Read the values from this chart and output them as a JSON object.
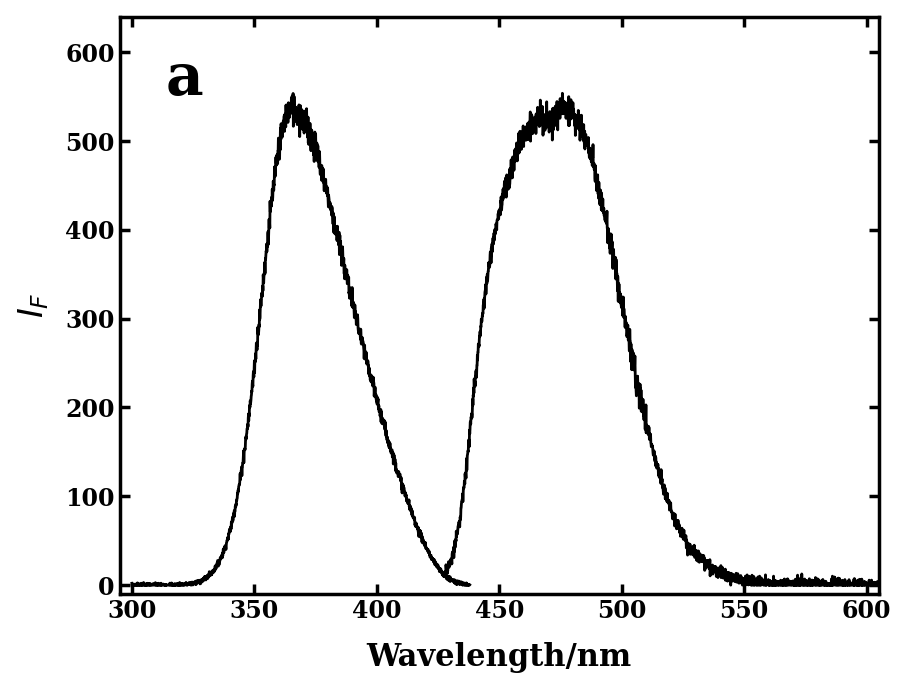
{
  "title_label": "a",
  "xlabel": "Wavelength/nm",
  "ylabel": "$I_F$",
  "xlim": [
    295,
    605
  ],
  "ylim": [
    -10,
    640
  ],
  "xticks": [
    300,
    350,
    400,
    450,
    500,
    550,
    600
  ],
  "yticks": [
    0,
    100,
    200,
    300,
    400,
    500,
    600
  ],
  "background_color": "#ffffff",
  "line_color": "#000000",
  "line_width": 2.0
}
